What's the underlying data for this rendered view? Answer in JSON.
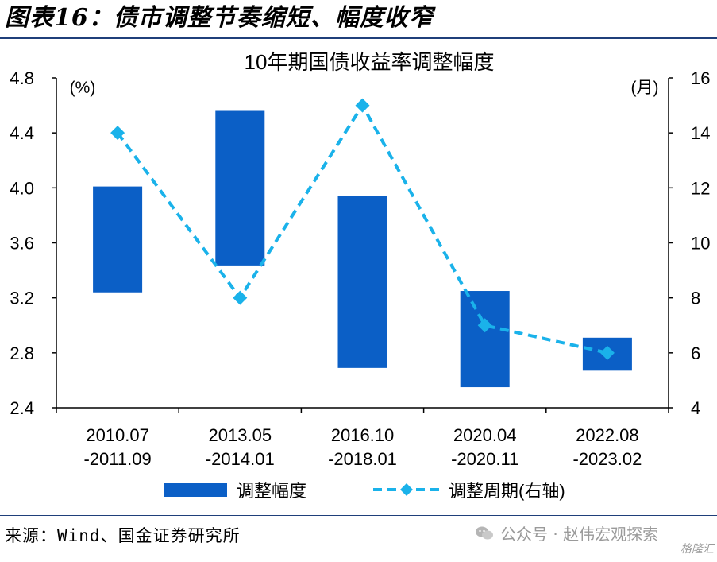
{
  "figure_title": "图表16：债市调整节奏缩短、幅度收窄",
  "source_text": "来源：Wind、国金证券研究所",
  "watermark_text": "公众号 · 赵伟宏观探索",
  "watermark_badge": "格隆汇",
  "colors": {
    "bar": "#0b5fc6",
    "line": "#1ab2ea",
    "rule": "#1f3f7a"
  },
  "chart_data": {
    "type": "bar",
    "title": "10年期国债收益率调整幅度",
    "categories": [
      [
        "2010.07",
        "-2011.09"
      ],
      [
        "2013.05",
        "-2014.01"
      ],
      [
        "2016.10",
        "-2018.01"
      ],
      [
        "2020.04",
        "-2020.11"
      ],
      [
        "2022.08",
        "-2023.02"
      ]
    ],
    "left_axis": {
      "unit_label": "(%)",
      "ylim": [
        2.4,
        4.8
      ],
      "ticks": [
        "2.4",
        "2.8",
        "3.2",
        "3.6",
        "4.0",
        "4.4",
        "4.8"
      ]
    },
    "right_axis": {
      "unit_label": "(月)",
      "ylim": [
        4,
        16
      ],
      "ticks": [
        "4",
        "6",
        "8",
        "10",
        "12",
        "14",
        "16"
      ]
    },
    "series": [
      {
        "name": "调整幅度",
        "type": "floating-bar",
        "axis": "left",
        "ranges": [
          [
            3.24,
            4.01
          ],
          [
            3.43,
            4.56
          ],
          [
            2.69,
            3.94
          ],
          [
            2.55,
            3.25
          ],
          [
            2.67,
            2.91
          ]
        ]
      },
      {
        "name": "调整周期(右轴)",
        "type": "line",
        "style": "dashed",
        "marker": "diamond",
        "axis": "right",
        "values": [
          14,
          8,
          15,
          7,
          6
        ]
      }
    ],
    "grid": false,
    "legend_position": "bottom"
  }
}
